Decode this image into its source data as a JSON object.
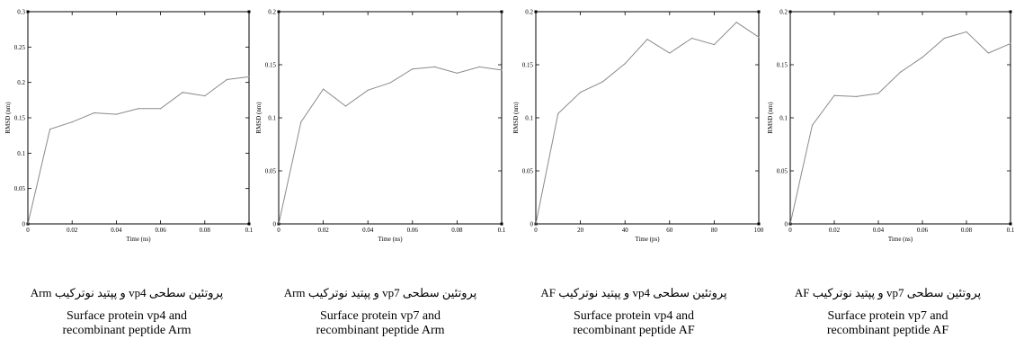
{
  "chart_data": [
    {
      "type": "line",
      "xlabel": "Time (ns)",
      "ylabel": "RMSD (nm)",
      "xlim": [
        0,
        0.1
      ],
      "ylim": [
        0,
        0.3
      ],
      "xticks": [
        0,
        0.02,
        0.04,
        0.06,
        0.08,
        0.1
      ],
      "xtick_labels": [
        "0",
        "0.02",
        "0.04",
        "0.06",
        "0.08",
        "0.1"
      ],
      "yticks": [
        0,
        0.05,
        0.1,
        0.15,
        0.2,
        0.25,
        0.3
      ],
      "ytick_labels": [
        "0",
        "0.05",
        "0.1",
        "0.15",
        "0.2",
        "0.25",
        "0.3"
      ],
      "series": [
        {
          "x": [
            0,
            0.01,
            0.02,
            0.03,
            0.04,
            0.05,
            0.06,
            0.07,
            0.08,
            0.09,
            0.1
          ],
          "y": [
            0,
            0.134,
            0.144,
            0.157,
            0.155,
            0.163,
            0.163,
            0.186,
            0.181,
            0.204,
            0.208
          ]
        }
      ],
      "caption_fa": "پروتئین سطحی vp4 و پپتید نوترکیب Arm",
      "caption_en": "Surface protein vp4 and\nrecombinant peptide Arm"
    },
    {
      "type": "line",
      "xlabel": "Time (ns)",
      "ylabel": "RMSD (nm)",
      "xlim": [
        0,
        0.1
      ],
      "ylim": [
        0,
        0.2
      ],
      "xticks": [
        0,
        0.02,
        0.04,
        0.06,
        0.08,
        0.1
      ],
      "xtick_labels": [
        "0",
        "0.02",
        "0.04",
        "0.06",
        "0.08",
        "0.1"
      ],
      "yticks": [
        0,
        0.05,
        0.1,
        0.15,
        0.2
      ],
      "ytick_labels": [
        "0",
        "0.05",
        "0.1",
        "0.15",
        "0.2"
      ],
      "series": [
        {
          "x": [
            0,
            0.01,
            0.02,
            0.03,
            0.04,
            0.05,
            0.06,
            0.07,
            0.08,
            0.09,
            0.1
          ],
          "y": [
            0,
            0.096,
            0.127,
            0.111,
            0.126,
            0.133,
            0.146,
            0.148,
            0.142,
            0.148,
            0.145
          ]
        }
      ],
      "caption_fa": "پروتئین سطحی vp7 و پپتید نوترکیب Arm",
      "caption_en": "Surface protein vp7 and\nrecombinant peptide Arm"
    },
    {
      "type": "line",
      "xlabel": "Time (ps)",
      "ylabel": "RMSD (nm)",
      "xlim": [
        0,
        100
      ],
      "ylim": [
        0,
        0.2
      ],
      "xticks": [
        0,
        20,
        40,
        60,
        80,
        100
      ],
      "xtick_labels": [
        "0",
        "20",
        "40",
        "60",
        "80",
        "100"
      ],
      "yticks": [
        0,
        0.05,
        0.1,
        0.15,
        0.2
      ],
      "ytick_labels": [
        "0",
        "0.05",
        "0.1",
        "0.15",
        "0.2"
      ],
      "series": [
        {
          "x": [
            0,
            10,
            20,
            30,
            40,
            50,
            60,
            70,
            80,
            90,
            100
          ],
          "y": [
            0,
            0.104,
            0.124,
            0.134,
            0.151,
            0.174,
            0.161,
            0.175,
            0.169,
            0.19,
            0.176
          ]
        }
      ],
      "caption_fa": "پروتئین سطحی vp4 و پپتید نوترکیب AF",
      "caption_en": "Surface protein vp4 and\nrecombinant peptide AF"
    },
    {
      "type": "line",
      "xlabel": "Time (ns)",
      "ylabel": "RMSD (nm)",
      "xlim": [
        0,
        0.1
      ],
      "ylim": [
        0,
        0.2
      ],
      "xticks": [
        0,
        0.02,
        0.04,
        0.06,
        0.08,
        0.1
      ],
      "xtick_labels": [
        "0",
        "0.02",
        "0.04",
        "0.06",
        "0.08",
        "0.1"
      ],
      "yticks": [
        0,
        0.05,
        0.1,
        0.15,
        0.2
      ],
      "ytick_labels": [
        "0",
        "0.05",
        "0.1",
        "0.15",
        "0.2"
      ],
      "series": [
        {
          "x": [
            0,
            0.01,
            0.02,
            0.03,
            0.04,
            0.05,
            0.06,
            0.07,
            0.08,
            0.09,
            0.1
          ],
          "y": [
            0,
            0.093,
            0.121,
            0.12,
            0.123,
            0.143,
            0.157,
            0.175,
            0.181,
            0.161,
            0.17
          ]
        }
      ],
      "caption_fa": "پروتئین سطحی vp7 و پپتید نوترکیب AF",
      "caption_en": "Surface protein vp7 and\nrecombinant peptide AF"
    }
  ]
}
